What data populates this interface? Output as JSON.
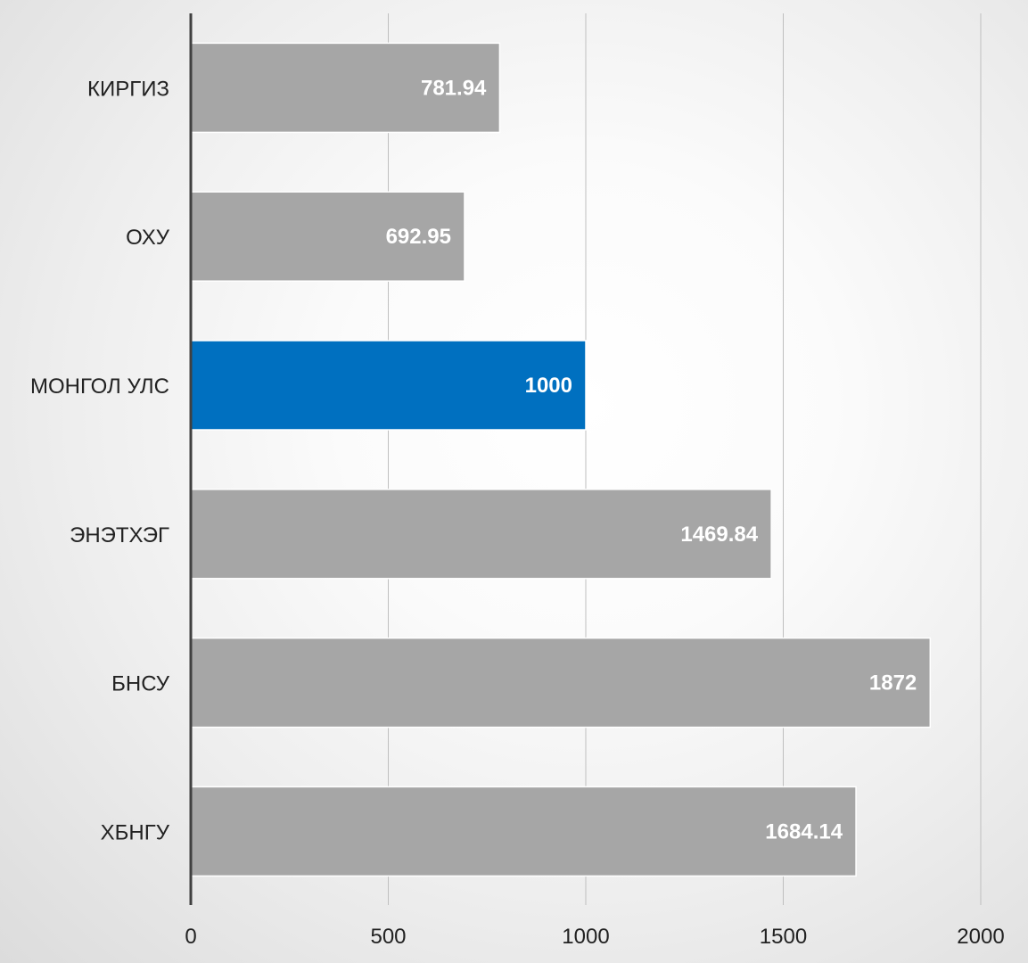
{
  "chart_data": {
    "type": "bar",
    "orientation": "horizontal",
    "title": "",
    "xlabel": "",
    "ylabel": "",
    "categories": [
      "КИРГИЗ",
      "ОХУ",
      "МОНГОЛ УЛС",
      "ЭНЭТХЭГ",
      "БНСУ",
      "ХБНГУ"
    ],
    "values": [
      781.94,
      692.95,
      1000,
      1469.84,
      1872,
      1684.14
    ],
    "value_labels": [
      "781.94",
      "692.95",
      "1000",
      "1469.84",
      "1872",
      "1684.14"
    ],
    "xlim": [
      0,
      2000
    ],
    "x_ticks": [
      0,
      500,
      1000,
      1500,
      2000
    ],
    "x_tick_labels": [
      "0",
      "500",
      "1000",
      "1500",
      "2000"
    ],
    "grid": true,
    "legend": "none",
    "colors": {
      "default_bar": "#a6a6a6",
      "highlight_bar": "#0070c0",
      "highlight_category": "МОНГОЛ УЛС",
      "value_label": "#ffffff",
      "axis_line": "#404040",
      "gridline": "#bfbfbf",
      "text": "#222222"
    }
  }
}
